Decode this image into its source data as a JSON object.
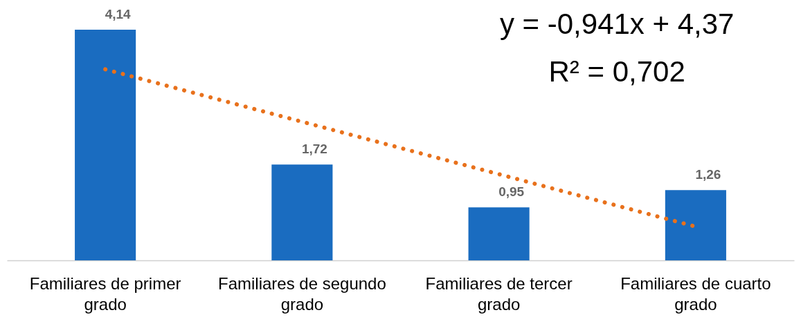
{
  "chart_data": {
    "type": "bar",
    "categories": [
      "Familiares de primer grado",
      "Familiares de segundo grado",
      "Familiares de tercer grado",
      "Familiares de cuarto grado"
    ],
    "series": [
      {
        "color": "#1a6cc0",
        "values": [
          4.14,
          1.72,
          0.95,
          1.26
        ],
        "value_labels": [
          "4,14",
          "1,72",
          "0,95",
          "1,26"
        ]
      },
      {
        "type": "line",
        "x": [
          "Familiares de primer grado",
          "Familiares de segundo grado",
          "Familiares de tercer grado",
          "Familiares de cuarto grado"
        ],
        "color": "#e8711c",
        "line_style": "dotted",
        "values": [
          3.429,
          2.488,
          1.547,
          0.606
        ]
      }
    ],
    "tick_labels": "x",
    "grid": false,
    "annotations": [
      "y = -0,941x + 4,37",
      "R² = 0,702"
    ]
  }
}
